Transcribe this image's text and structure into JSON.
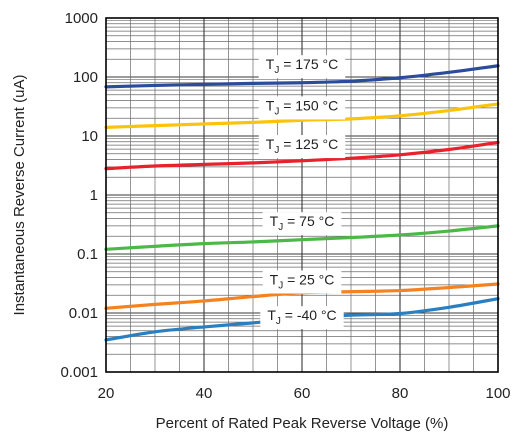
{
  "chart_data": {
    "type": "line",
    "title": "",
    "xlabel": "Percent of Rated Peak Reverse Voltage (%)",
    "ylabel": "Instantaneous Reverse Current (uA)",
    "xlim": [
      20,
      100
    ],
    "ylim": [
      0.001,
      1000
    ],
    "y_scale": "log",
    "grid": true,
    "x_ticks": [
      20,
      40,
      60,
      80,
      100
    ],
    "x_tick_labels": [
      "20",
      "40",
      "60",
      "80",
      "100"
    ],
    "y_ticks": [
      0.001,
      0.01,
      0.1,
      1,
      10,
      100,
      1000
    ],
    "y_tick_labels": [
      "0.001",
      "0.01",
      "0.1",
      "1",
      "10",
      "100",
      "1000"
    ],
    "series": [
      {
        "label_main": "T",
        "label_sub": "J",
        "label_rest": " = 175 °C",
        "color": "#2b4c9b",
        "x": [
          20,
          30,
          40,
          50,
          60,
          70,
          80,
          90,
          100
        ],
        "y": [
          68,
          72,
          75,
          78,
          80,
          85,
          97,
          120,
          155
        ],
        "label_x": 60,
        "label_y": 165
      },
      {
        "label_main": "T",
        "label_sub": "J",
        "label_rest": " = 150 °C",
        "color": "#fcc30b",
        "x": [
          20,
          30,
          40,
          50,
          60,
          70,
          80,
          90,
          100
        ],
        "y": [
          14,
          15,
          16,
          17,
          18.5,
          19.5,
          22,
          27,
          35
        ],
        "label_x": 60,
        "label_y": 33
      },
      {
        "label_main": "T",
        "label_sub": "J",
        "label_rest": " = 125 °C",
        "color": "#e8222c",
        "x": [
          20,
          30,
          40,
          50,
          60,
          70,
          80,
          90,
          100
        ],
        "y": [
          2.8,
          3.1,
          3.3,
          3.5,
          3.8,
          4.2,
          4.8,
          5.9,
          7.8
        ],
        "label_x": 60,
        "label_y": 7.3
      },
      {
        "label_main": "T",
        "label_sub": "J",
        "label_rest": " = 75 °C",
        "color": "#4cb848",
        "x": [
          20,
          30,
          40,
          50,
          60,
          70,
          80,
          90,
          100
        ],
        "y": [
          0.12,
          0.135,
          0.15,
          0.16,
          0.175,
          0.19,
          0.21,
          0.245,
          0.3
        ],
        "label_x": 60,
        "label_y": 0.36
      },
      {
        "label_main": "T",
        "label_sub": "J",
        "label_rest": " = 25 °C",
        "color": "#f58220",
        "x": [
          20,
          30,
          40,
          50,
          60,
          70,
          80,
          90,
          100
        ],
        "y": [
          0.012,
          0.014,
          0.016,
          0.019,
          0.022,
          0.023,
          0.024,
          0.027,
          0.031
        ],
        "label_x": 60,
        "label_y": 0.037
      },
      {
        "label_main": "T",
        "label_sub": "J",
        "label_rest": " = -40 °C",
        "color": "#2a7fc1",
        "x": [
          20,
          30,
          40,
          50,
          60,
          70,
          80,
          90,
          100
        ],
        "y": [
          0.0035,
          0.0048,
          0.0058,
          0.0068,
          0.0082,
          0.0092,
          0.0098,
          0.0125,
          0.0175
        ],
        "label_x": 60,
        "label_y": 0.0092
      }
    ]
  }
}
